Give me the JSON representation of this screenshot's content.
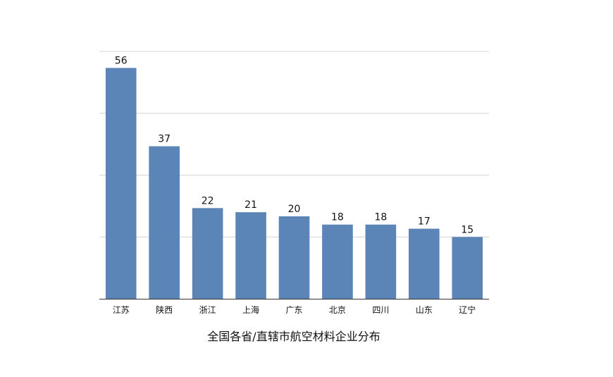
{
  "chart_data": {
    "type": "bar",
    "categories": [
      "江苏",
      "陕西",
      "浙江",
      "上海",
      "广东",
      "北京",
      "四川",
      "山东",
      "辽宁"
    ],
    "values": [
      56,
      37,
      22,
      21,
      20,
      18,
      18,
      17,
      15
    ],
    "title": "全国各省/直辖市航空材料企业分布",
    "xlabel": "",
    "ylabel": "",
    "ylim": [
      0,
      60
    ],
    "grid": true,
    "bar_color": "#5b85b7",
    "data_labels": true
  }
}
